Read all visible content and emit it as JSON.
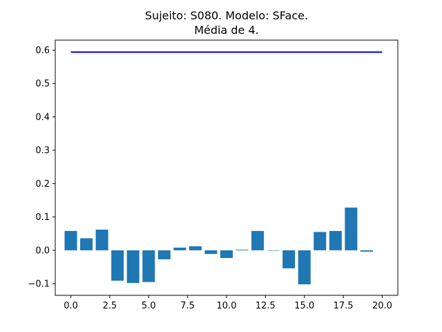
{
  "chart_data": {
    "type": "bar",
    "title": "Sujeito: S080. Modelo: SFace.",
    "subtitle": "Média de 4.",
    "xlabel": "",
    "ylabel": "",
    "xlim": [
      -1,
      21
    ],
    "ylim": [
      -0.135,
      0.63
    ],
    "x_ticks": [
      0.0,
      2.5,
      5.0,
      7.5,
      10.0,
      12.5,
      15.0,
      17.5,
      20.0
    ],
    "x_tick_labels": [
      "0.0",
      "2.5",
      "5.0",
      "7.5",
      "10.0",
      "12.5",
      "15.0",
      "17.5",
      "20.0"
    ],
    "y_ticks": [
      -0.1,
      0.0,
      0.1,
      0.2,
      0.3,
      0.4,
      0.5,
      0.6
    ],
    "y_tick_labels": [
      "−0.1",
      "0.0",
      "0.1",
      "0.2",
      "0.3",
      "0.4",
      "0.5",
      "0.6"
    ],
    "grid": false,
    "bar_color": "#1f77b4",
    "bars": {
      "x": [
        0,
        1,
        2,
        3,
        4,
        5,
        6,
        7,
        8,
        9,
        10,
        11,
        12,
        13,
        14,
        15,
        16,
        17,
        18,
        19
      ],
      "values": [
        0.058,
        0.036,
        0.062,
        -0.091,
        -0.098,
        -0.095,
        -0.027,
        0.008,
        0.012,
        -0.011,
        -0.023,
        0.002,
        0.058,
        0.0,
        -0.054,
        -0.102,
        0.055,
        0.058,
        0.128,
        -0.004
      ]
    },
    "line": {
      "color": "#0000cc",
      "x": [
        0,
        20
      ],
      "y": [
        0.594,
        0.594
      ]
    }
  }
}
